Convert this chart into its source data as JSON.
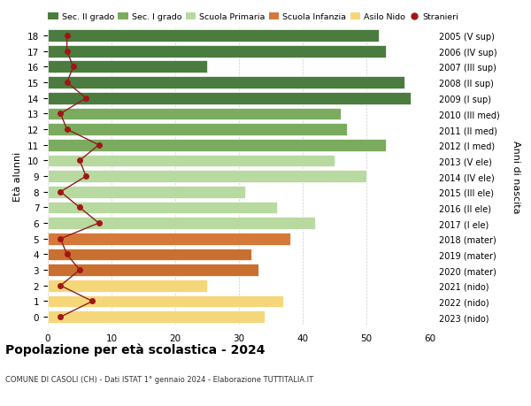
{
  "ages": [
    18,
    17,
    16,
    15,
    14,
    13,
    12,
    11,
    10,
    9,
    8,
    7,
    6,
    5,
    4,
    3,
    2,
    1,
    0
  ],
  "bar_values": [
    52,
    53,
    25,
    56,
    57,
    46,
    47,
    53,
    45,
    50,
    31,
    36,
    42,
    38,
    32,
    33,
    25,
    37,
    34
  ],
  "stranieri_values": [
    3,
    3,
    4,
    3,
    6,
    2,
    3,
    8,
    5,
    6,
    2,
    5,
    8,
    2,
    3,
    5,
    2,
    7,
    2
  ],
  "right_labels": [
    "2005 (V sup)",
    "2006 (IV sup)",
    "2007 (III sup)",
    "2008 (II sup)",
    "2009 (I sup)",
    "2010 (III med)",
    "2011 (II med)",
    "2012 (I med)",
    "2013 (V ele)",
    "2014 (IV ele)",
    "2015 (III ele)",
    "2016 (II ele)",
    "2017 (I ele)",
    "2018 (mater)",
    "2019 (mater)",
    "2020 (mater)",
    "2021 (nido)",
    "2022 (nido)",
    "2023 (nido)"
  ],
  "bar_colors": [
    "#4a7c40",
    "#4a7c40",
    "#4a7c40",
    "#4a7c40",
    "#4a7c40",
    "#7aab5e",
    "#7aab5e",
    "#7aab5e",
    "#b8d9a0",
    "#b8d9a0",
    "#b8d9a0",
    "#b8d9a0",
    "#b8d9a0",
    "#d4793a",
    "#c97030",
    "#c97030",
    "#f5d77a",
    "#f5d77a",
    "#f5d77a"
  ],
  "legend_labels": [
    "Sec. II grado",
    "Sec. I grado",
    "Scuola Primaria",
    "Scuola Infanzia",
    "Asilo Nido",
    "Stranieri"
  ],
  "legend_colors": [
    "#4a7c40",
    "#7aab5e",
    "#b8d9a0",
    "#d4793a",
    "#f5d77a",
    "#a31515"
  ],
  "stranieri_color": "#a31515",
  "line_color": "#8b2020",
  "title": "Popolazione per età scolastica - 2024",
  "subtitle": "COMUNE DI CASOLI (CH) - Dati ISTAT 1° gennaio 2024 - Elaborazione TUTTITALIA.IT",
  "ylabel_left": "Età alunni",
  "ylabel_right": "Anni di nascita",
  "xlim": [
    0,
    60
  ],
  "xticks": [
    0,
    10,
    20,
    30,
    40,
    50,
    60
  ],
  "background_color": "#ffffff",
  "grid_color": "#cccccc"
}
